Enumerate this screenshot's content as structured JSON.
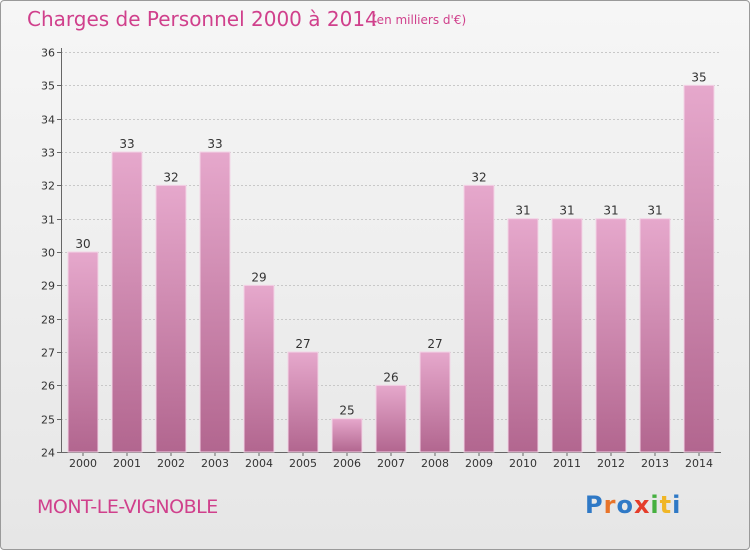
{
  "header": {
    "title": "Charges de Personnel 2000 à 2014",
    "subtitle": "(en milliers d'€)"
  },
  "footer": {
    "commune": "MONT-LE-VIGNOBLE",
    "logo_text": "Proxiti",
    "logo_colors": [
      "#2f79c6",
      "#e8742a",
      "#2f79c6",
      "#e53c2a",
      "#46b040",
      "#f0b626",
      "#2f79c6"
    ]
  },
  "colors": {
    "title": "#d0408c",
    "bar_top": "#e6a8cc",
    "bar_bottom": "#b2668f",
    "grid": "#c8c8c8"
  },
  "chart_data": {
    "type": "bar",
    "title": "Charges de Personnel 2000 à 2014",
    "xlabel": "",
    "ylabel": "",
    "categories": [
      "2000",
      "2001",
      "2002",
      "2003",
      "2004",
      "2005",
      "2006",
      "2007",
      "2008",
      "2009",
      "2010",
      "2011",
      "2012",
      "2013",
      "2014"
    ],
    "values": [
      30,
      33,
      32,
      33,
      29,
      27,
      25,
      26,
      27,
      32,
      31,
      31,
      31,
      31,
      35
    ],
    "ylim": [
      24,
      36
    ],
    "yticks": [
      24,
      25,
      26,
      27,
      28,
      29,
      30,
      31,
      32,
      33,
      34,
      35,
      36
    ],
    "grid": true,
    "data_labels": true
  }
}
